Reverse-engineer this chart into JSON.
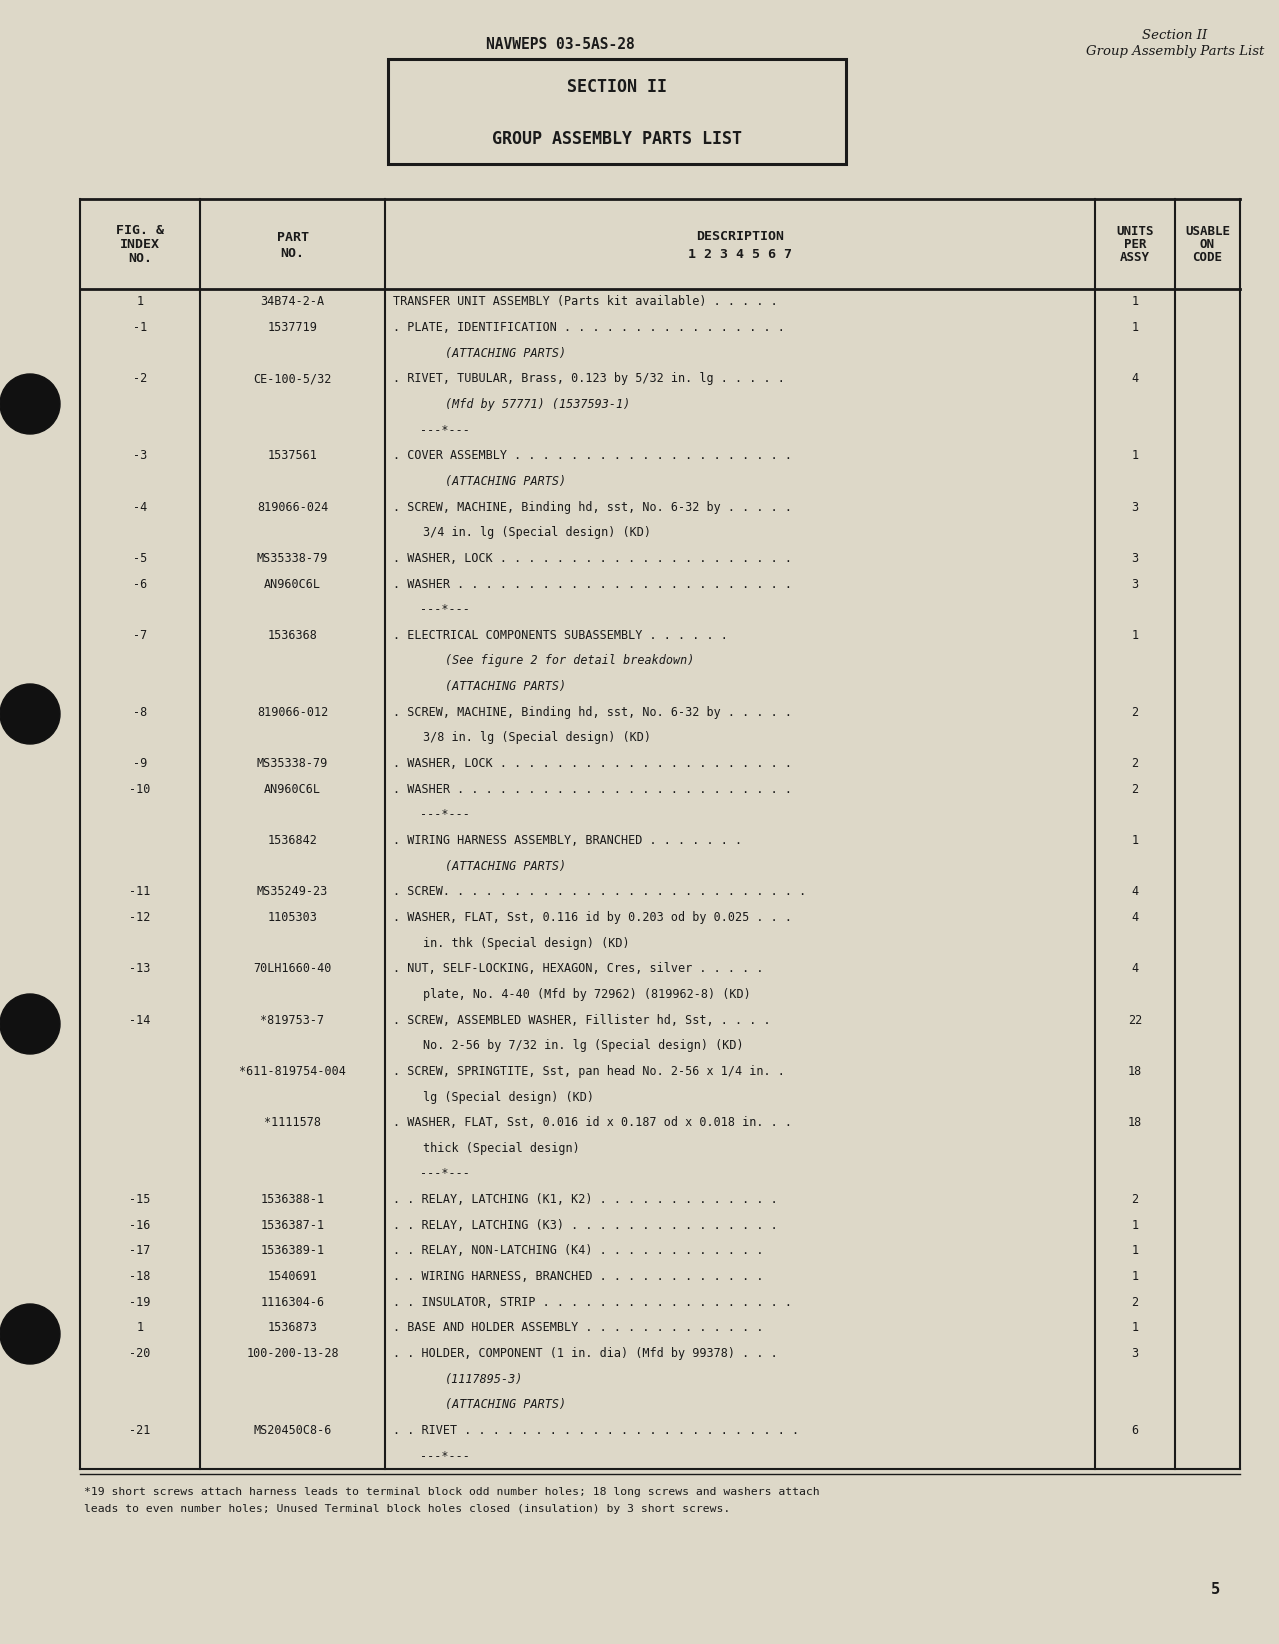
{
  "bg_color": "#ddd8c8",
  "page_num": "5",
  "header_left": "NAVWEPS 03-5AS-28",
  "header_right_line1": "Section II",
  "header_right_line2": "Group Assembly Parts List",
  "section_box_title": "SECTION II",
  "section_box_subtitle": "GROUP ASSEMBLY PARTS LIST",
  "rows": [
    {
      "fig": "1",
      "part": "34B74-2-A",
      "desc": "TRANSFER UNIT ASSEMBLY (Parts kit available) . . . . .",
      "units": "1",
      "usable": "",
      "indent": 0
    },
    {
      "fig": "-1",
      "part": "1537719",
      "desc": ". PLATE, IDENTIFICATION . . . . . . . . . . . . . . . .",
      "units": "1",
      "usable": "",
      "indent": 0
    },
    {
      "fig": "",
      "part": "",
      "desc": "(ATTACHING PARTS)",
      "units": "",
      "usable": "",
      "indent": 1
    },
    {
      "fig": "-2",
      "part": "CE-100-5/32",
      "desc": ". RIVET, TUBULAR, Brass, 0.123 by 5/32 in. lg . . . . .",
      "units": "4",
      "usable": "",
      "indent": 0
    },
    {
      "fig": "",
      "part": "",
      "desc": "(Mfd by 57771) (1537593-1)",
      "units": "",
      "usable": "",
      "indent": 1
    },
    {
      "fig": "",
      "part": "",
      "desc": "---*---",
      "units": "",
      "usable": "",
      "indent": 1
    },
    {
      "fig": "-3",
      "part": "1537561",
      "desc": ". COVER ASSEMBLY . . . . . . . . . . . . . . . . . . . .",
      "units": "1",
      "usable": "",
      "indent": 0
    },
    {
      "fig": "",
      "part": "",
      "desc": "(ATTACHING PARTS)",
      "units": "",
      "usable": "",
      "indent": 1
    },
    {
      "fig": "-4",
      "part": "819066-024",
      "desc": ". SCREW, MACHINE, Binding hd, sst, No. 6-32 by . . . . .",
      "units": "3",
      "usable": "",
      "indent": 0
    },
    {
      "fig": "",
      "part": "",
      "desc": "3/4 in. lg (Special design) (KD)",
      "units": "",
      "usable": "",
      "indent": 1
    },
    {
      "fig": "-5",
      "part": "MS35338-79",
      "desc": ". WASHER, LOCK . . . . . . . . . . . . . . . . . . . . .",
      "units": "3",
      "usable": "",
      "indent": 0
    },
    {
      "fig": "-6",
      "part": "AN960C6L",
      "desc": ". WASHER . . . . . . . . . . . . . . . . . . . . . . . .",
      "units": "3",
      "usable": "",
      "indent": 0
    },
    {
      "fig": "",
      "part": "",
      "desc": "---*---",
      "units": "",
      "usable": "",
      "indent": 1
    },
    {
      "fig": "-7",
      "part": "1536368",
      "desc": ". ELECTRICAL COMPONENTS SUBASSEMBLY . . . . . .",
      "units": "1",
      "usable": "",
      "indent": 0
    },
    {
      "fig": "",
      "part": "",
      "desc": "(See figure 2 for detail breakdown)",
      "units": "",
      "usable": "",
      "indent": 1
    },
    {
      "fig": "",
      "part": "",
      "desc": "(ATTACHING PARTS)",
      "units": "",
      "usable": "",
      "indent": 1
    },
    {
      "fig": "-8",
      "part": "819066-012",
      "desc": ". SCREW, MACHINE, Binding hd, sst, No. 6-32 by . . . . .",
      "units": "2",
      "usable": "",
      "indent": 0
    },
    {
      "fig": "",
      "part": "",
      "desc": "3/8 in. lg (Special design) (KD)",
      "units": "",
      "usable": "",
      "indent": 1
    },
    {
      "fig": "-9",
      "part": "MS35338-79",
      "desc": ". WASHER, LOCK . . . . . . . . . . . . . . . . . . . . .",
      "units": "2",
      "usable": "",
      "indent": 0
    },
    {
      "fig": "-10",
      "part": "AN960C6L",
      "desc": ". WASHER . . . . . . . . . . . . . . . . . . . . . . . .",
      "units": "2",
      "usable": "",
      "indent": 0
    },
    {
      "fig": "",
      "part": "",
      "desc": "---*---",
      "units": "",
      "usable": "",
      "indent": 1
    },
    {
      "fig": "",
      "part": "1536842",
      "desc": ". WIRING HARNESS ASSEMBLY, BRANCHED . . . . . . .",
      "units": "1",
      "usable": "",
      "indent": 0
    },
    {
      "fig": "",
      "part": "",
      "desc": "(ATTACHING PARTS)",
      "units": "",
      "usable": "",
      "indent": 1
    },
    {
      "fig": "-11",
      "part": "MS35249-23",
      "desc": ". SCREW. . . . . . . . . . . . . . . . . . . . . . . . . .",
      "units": "4",
      "usable": "",
      "indent": 0
    },
    {
      "fig": "-12",
      "part": "1105303",
      "desc": ". WASHER, FLAT, Sst, 0.116 id by 0.203 od by 0.025 . . .",
      "units": "4",
      "usable": "",
      "indent": 0
    },
    {
      "fig": "",
      "part": "",
      "desc": "in. thk (Special design) (KD)",
      "units": "",
      "usable": "",
      "indent": 1
    },
    {
      "fig": "-13",
      "part": "70LH1660-40",
      "desc": ". NUT, SELF-LOCKING, HEXAGON, Cres, silver . . . . .",
      "units": "4",
      "usable": "",
      "indent": 0
    },
    {
      "fig": "",
      "part": "",
      "desc": "plate, No. 4-40 (Mfd by 72962) (819962-8) (KD)",
      "units": "",
      "usable": "",
      "indent": 1
    },
    {
      "fig": "-14",
      "part": "*819753-7",
      "desc": ". SCREW, ASSEMBLED WASHER, Fillister hd, Sst, . . . .",
      "units": "22",
      "usable": "",
      "indent": 0
    },
    {
      "fig": "",
      "part": "",
      "desc": "No. 2-56 by 7/32 in. lg (Special design) (KD)",
      "units": "",
      "usable": "",
      "indent": 1
    },
    {
      "fig": "",
      "part": "*611-819754-004",
      "desc": ". SCREW, SPRINGTITE, Sst, pan head No. 2-56 x 1/4 in. .",
      "units": "18",
      "usable": "",
      "indent": 0
    },
    {
      "fig": "",
      "part": "",
      "desc": "lg (Special design) (KD)",
      "units": "",
      "usable": "",
      "indent": 1
    },
    {
      "fig": "",
      "part": "*1111578",
      "desc": ". WASHER, FLAT, Sst, 0.016 id x 0.187 od x 0.018 in. . .",
      "units": "18",
      "usable": "",
      "indent": 0
    },
    {
      "fig": "",
      "part": "",
      "desc": "thick (Special design)",
      "units": "",
      "usable": "",
      "indent": 1
    },
    {
      "fig": "",
      "part": "",
      "desc": "---*---",
      "units": "",
      "usable": "",
      "indent": 1
    },
    {
      "fig": "-15",
      "part": "1536388-1",
      "desc": ". . RELAY, LATCHING (K1, K2) . . . . . . . . . . . . .",
      "units": "2",
      "usable": "",
      "indent": 0
    },
    {
      "fig": "-16",
      "part": "1536387-1",
      "desc": ". . RELAY, LATCHING (K3) . . . . . . . . . . . . . . .",
      "units": "1",
      "usable": "",
      "indent": 0
    },
    {
      "fig": "-17",
      "part": "1536389-1",
      "desc": ". . RELAY, NON-LATCHING (K4) . . . . . . . . . . . .",
      "units": "1",
      "usable": "",
      "indent": 0
    },
    {
      "fig": "-18",
      "part": "1540691",
      "desc": ". . WIRING HARNESS, BRANCHED . . . . . . . . . . . .",
      "units": "1",
      "usable": "",
      "indent": 0
    },
    {
      "fig": "-19",
      "part": "1116304-6",
      "desc": ". . INSULATOR, STRIP . . . . . . . . . . . . . . . . . .",
      "units": "2",
      "usable": "",
      "indent": 0
    },
    {
      "fig": "1",
      "part": "1536873",
      "desc": ". BASE AND HOLDER ASSEMBLY . . . . . . . . . . . . .",
      "units": "1",
      "usable": "",
      "indent": 0
    },
    {
      "fig": "-20",
      "part": "100-200-13-28",
      "desc": ". . HOLDER, COMPONENT (1 in. dia) (Mfd by 99378) . . .",
      "units": "3",
      "usable": "",
      "indent": 0
    },
    {
      "fig": "",
      "part": "",
      "desc": "(1117895-3)",
      "units": "",
      "usable": "",
      "indent": 1
    },
    {
      "fig": "",
      "part": "",
      "desc": "(ATTACHING PARTS)",
      "units": "",
      "usable": "",
      "indent": 1
    },
    {
      "fig": "-21",
      "part": "MS20450C8-6",
      "desc": ". . RIVET . . . . . . . . . . . . . . . . . . . . . . . .",
      "units": "6",
      "usable": "",
      "indent": 0
    },
    {
      "fig": "",
      "part": "",
      "desc": "---*---",
      "units": "",
      "usable": "",
      "indent": 1
    }
  ],
  "footnote_line1": "*19 short screws attach harness leads to terminal block odd number holes; 18 long screws and washers attach",
  "footnote_line2": "leads to even number holes; Unused Terminal block holes closed (insulation) by 3 short screws."
}
